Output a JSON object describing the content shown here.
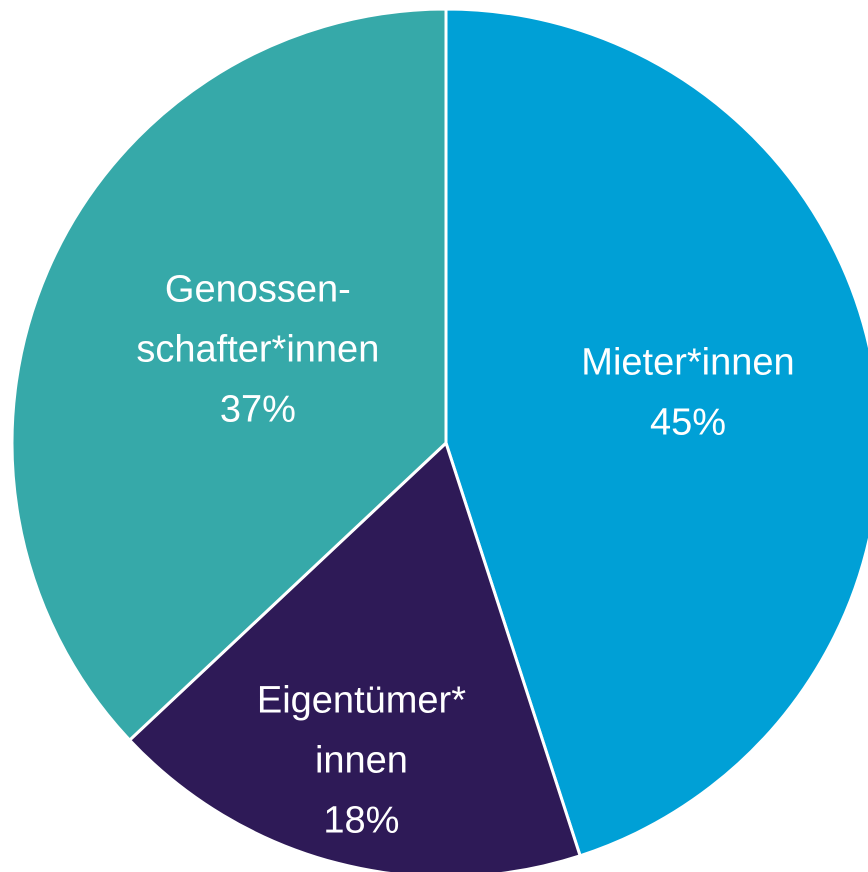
{
  "chart_data": {
    "type": "pie",
    "categories": [
      "Mieter*innen",
      "Eigentümer*\ninnen",
      "Genossen-\nschafter*innen"
    ],
    "values": [
      45,
      18,
      37
    ],
    "value_labels": [
      "45%",
      "18%",
      "37%"
    ],
    "colors": [
      "#00a0d6",
      "#2e1a57",
      "#36a9a9"
    ],
    "start_angle": 0,
    "direction": "clockwise"
  }
}
